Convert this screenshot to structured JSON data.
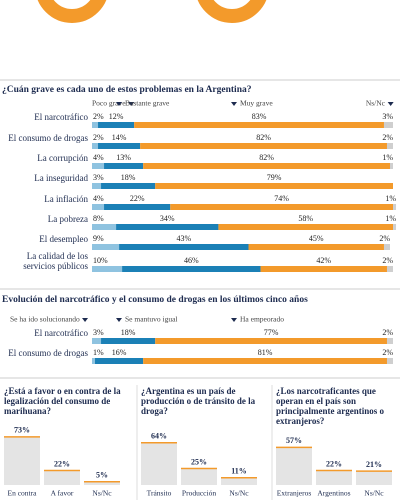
{
  "chart_data": [
    {
      "type": "stacked_bar_h",
      "title": "¿Cuán grave es cada uno de estos problemas en la Argentina?",
      "categories": [
        "El narcotráfico",
        "El consumo de drogas",
        "La corrupción",
        "La inseguridad",
        "La inflación",
        "La pobreza",
        "El desempleo",
        "La calidad de los servicios públicos"
      ],
      "series": [
        {
          "name": "Poco grave",
          "color": "#8fc3e0",
          "values": [
            2,
            2,
            4,
            3,
            4,
            8,
            9,
            10
          ],
          "value_labels": [
            "2%",
            "2%",
            "4%",
            "3%",
            "4%",
            "8%",
            "9%",
            "10%"
          ]
        },
        {
          "name": "Bastante grave",
          "color": "#1b80b6",
          "values": [
            12,
            14,
            13,
            18,
            22,
            34,
            43,
            46
          ],
          "value_labels": [
            "12%",
            "14%",
            "13%",
            "18%",
            "22%",
            "34%",
            "43%",
            "46%"
          ]
        },
        {
          "name": "Muy grave",
          "color": "#f39a2b",
          "values": [
            83,
            82,
            82,
            79,
            74,
            58,
            45,
            42
          ],
          "value_labels": [
            "83%",
            "82%",
            "82%",
            "79%",
            "74%",
            "58%",
            "45%",
            "42%"
          ]
        },
        {
          "name": "Ns/Nc",
          "color": "#cfcfcf",
          "values": [
            3,
            2,
            1,
            null,
            1,
            1,
            2,
            2
          ],
          "value_labels": [
            "3%",
            "2%",
            "1%",
            null,
            "1%",
            "1%",
            "2%",
            "2%"
          ]
        }
      ]
    },
    {
      "type": "stacked_bar_h",
      "title": "Evolución del narcotráfico y el consumo de drogas en los últimos cinco años",
      "categories": [
        "El narcotráfico",
        "El consumo de drogas"
      ],
      "series": [
        {
          "name": "Se ha ido solucionando",
          "color": "#8fc3e0",
          "values": [
            3,
            1
          ],
          "value_labels": [
            "3%",
            "1%"
          ]
        },
        {
          "name": "Se mantuvo igual",
          "color": "#1b80b6",
          "values": [
            18,
            16
          ],
          "value_labels": [
            "18%",
            "16%"
          ]
        },
        {
          "name": "Ha empeorado",
          "color": "#f39a2b",
          "values": [
            77,
            81
          ],
          "value_labels": [
            "77%",
            "81%"
          ]
        },
        {
          "color": "#cfcfcf",
          "values": [
            2,
            2
          ],
          "value_labels": [
            "2%",
            "2%"
          ]
        }
      ]
    },
    {
      "type": "bar",
      "title": "¿Está a favor o en contra de la legalización del consumo de marihuana?",
      "categories": [
        "En contra",
        "A favor",
        "Ns/Nc"
      ],
      "values": [
        73,
        22,
        5
      ],
      "value_labels": [
        "73%",
        "22%",
        "5%"
      ],
      "color": "#e4e4e4"
    },
    {
      "type": "bar",
      "title": "¿Argentina es un país de producción o de tránsito de la droga?",
      "categories": [
        "Tránsito",
        "Producción",
        "Ns/Nc"
      ],
      "values": [
        64,
        25,
        11
      ],
      "value_labels": [
        "64%",
        "25%",
        "11%"
      ],
      "color": "#e4e4e4"
    },
    {
      "type": "bar",
      "title": "¿Los narcotraficantes que operan en el país son principalmente argentinos o extranjeros?",
      "categories": [
        "Extranjeros",
        "Argentinos",
        "Ns/Nc"
      ],
      "values": [
        57,
        22,
        21
      ],
      "value_labels": [
        "57%",
        "22%",
        "21%"
      ],
      "color": "#e4e4e4"
    }
  ]
}
